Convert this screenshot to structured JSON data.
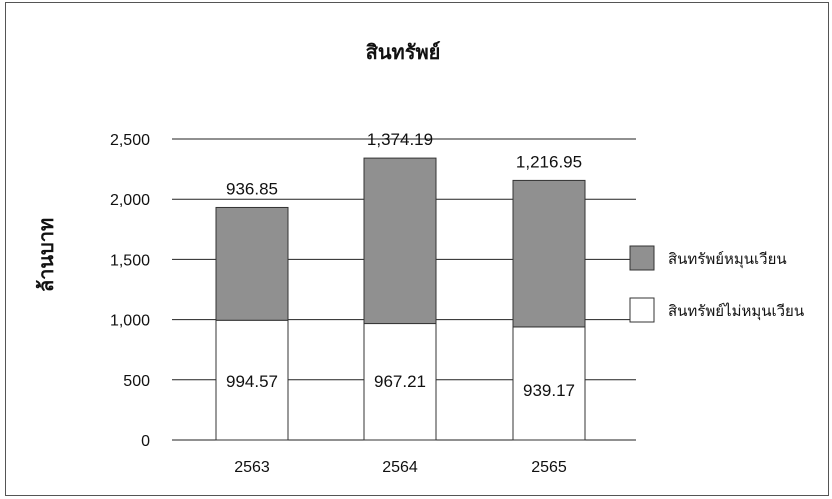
{
  "chart_data": {
    "type": "bar",
    "stacked": true,
    "title": "สินทรัพย์",
    "ylabel": "ล้านบาท",
    "xlabel": "",
    "categories": [
      "2563",
      "2564",
      "2565"
    ],
    "ylim": [
      0,
      2500
    ],
    "yticks": [
      0,
      500,
      1000,
      1500,
      2000,
      2500
    ],
    "ytick_labels": [
      "0",
      "500",
      "1,000",
      "1,500",
      "2,000",
      "2,500"
    ],
    "grid": true,
    "legend_position": "right",
    "series": [
      {
        "name": "สินทรัพย์ไม่หมุนเวียน",
        "values": [
          994.57,
          967.21,
          939.17
        ],
        "labels": [
          "994.57",
          "967.21",
          "939.17"
        ],
        "color": "#ffffff"
      },
      {
        "name": "สินทรัพย์หมุนเวียน",
        "values": [
          936.85,
          1374.19,
          1216.95
        ],
        "labels": [
          "936.85",
          "1,374.19",
          "1,216.95"
        ],
        "color": "#909090"
      }
    ]
  }
}
